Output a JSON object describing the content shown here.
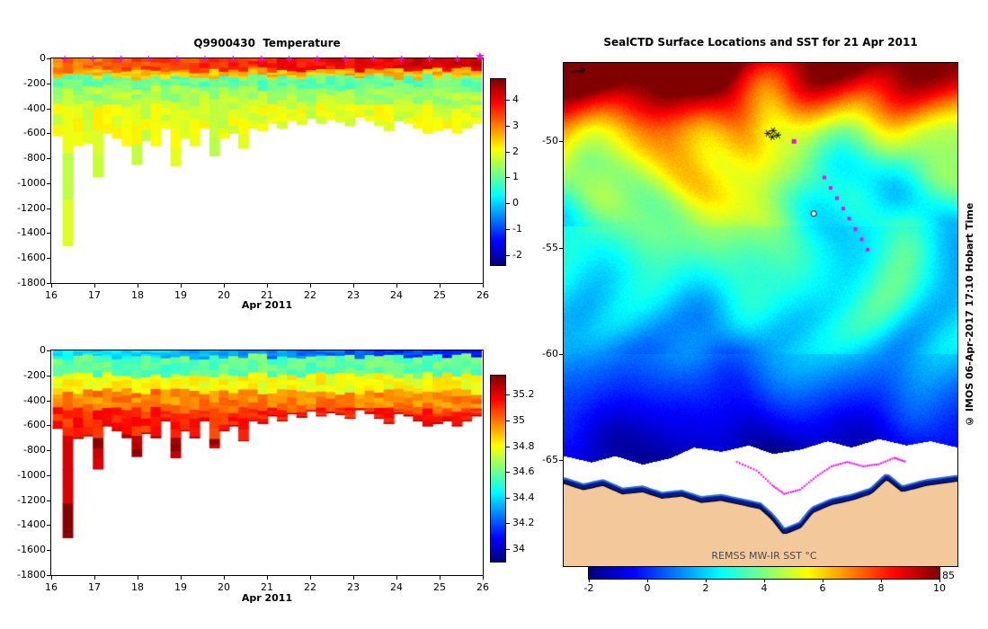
{
  "figure_bg": "#ffffff",
  "chart_data": [
    {
      "type": "heatmap",
      "title": "Q9900430  Temperature",
      "xlabel": "Apr 2011",
      "xlim": [
        16,
        26
      ],
      "ylim": [
        -1800,
        0
      ],
      "x_ticks": [
        16,
        17,
        18,
        19,
        20,
        21,
        22,
        23,
        24,
        25,
        26
      ],
      "y_ticks": [
        0,
        -200,
        -400,
        -600,
        -800,
        -1000,
        -1200,
        -1400,
        -1600,
        -1800
      ],
      "colormap": "jet",
      "color_range": [
        -2.4,
        4.8
      ],
      "colorbar_ticks": [
        4,
        3,
        2,
        1,
        0,
        -1,
        -2
      ],
      "marker_color": "#ff00ff",
      "marker_days": [
        16.3,
        16.95,
        17.6,
        18.25,
        18.9,
        19.55,
        20.2,
        20.85,
        21.5,
        22.15,
        22.8,
        23.45,
        24.1,
        24.75,
        25.4
      ],
      "end_marker_day": 26,
      "layers": [
        {
          "top": 0,
          "bottom": -95,
          "value": 3.1,
          "value_end": 4.3
        },
        {
          "top": -95,
          "bottom": -150,
          "value": 2.6
        },
        {
          "top": -150,
          "bottom": -240,
          "value": 1.0
        },
        {
          "top": -240,
          "bottom": -390,
          "value": 1.5
        },
        {
          "top": -390,
          "bottom": "max",
          "value": 1.9
        }
      ],
      "columns": [
        [
          16.15,
          -620
        ],
        [
          16.38,
          -1500
        ],
        [
          16.62,
          -700
        ],
        [
          16.85,
          -680
        ],
        [
          17.08,
          -950
        ],
        [
          17.3,
          -600
        ],
        [
          17.52,
          -640
        ],
        [
          17.75,
          -700
        ],
        [
          17.98,
          -850
        ],
        [
          18.2,
          -660
        ],
        [
          18.42,
          -700
        ],
        [
          18.65,
          -560
        ],
        [
          18.88,
          -860
        ],
        [
          19.1,
          -640
        ],
        [
          19.32,
          -700
        ],
        [
          19.55,
          -560
        ],
        [
          19.78,
          -780
        ],
        [
          20.0,
          -640
        ],
        [
          20.22,
          -600
        ],
        [
          20.45,
          -720
        ],
        [
          20.68,
          -560
        ],
        [
          20.9,
          -580
        ],
        [
          21.12,
          -520
        ],
        [
          21.35,
          -560
        ],
        [
          21.58,
          -500
        ],
        [
          21.8,
          -530
        ],
        [
          22.02,
          -480
        ],
        [
          22.25,
          -520
        ],
        [
          22.48,
          -490
        ],
        [
          22.7,
          -510
        ],
        [
          22.92,
          -540
        ],
        [
          23.15,
          -470
        ],
        [
          23.38,
          -500
        ],
        [
          23.6,
          -540
        ],
        [
          23.82,
          -580
        ],
        [
          24.05,
          -500
        ],
        [
          24.28,
          -520
        ],
        [
          24.5,
          -560
        ],
        [
          24.72,
          -600
        ],
        [
          24.95,
          -580
        ],
        [
          25.18,
          -560
        ],
        [
          25.4,
          -600
        ],
        [
          25.62,
          -560
        ],
        [
          25.85,
          -520
        ]
      ]
    },
    {
      "type": "heatmap",
      "title": "",
      "xlabel": "Apr 2011",
      "xlim": [
        16,
        26
      ],
      "ylim": [
        -1800,
        0
      ],
      "x_ticks": [
        16,
        17,
        18,
        19,
        20,
        21,
        22,
        23,
        24,
        25,
        26
      ],
      "y_ticks": [
        0,
        -200,
        -400,
        -600,
        -800,
        -1000,
        -1200,
        -1400,
        -1600,
        -1800
      ],
      "colormap": "jet",
      "color_range": [
        33.9,
        35.35
      ],
      "colorbar_ticks": [
        35.2,
        35,
        34.8,
        34.6,
        34.4,
        34.2,
        34
      ],
      "columns_same_as": 0,
      "layers": [
        {
          "top": 0,
          "bottom": -50,
          "value": 34.45,
          "value_end": 34.1
        },
        {
          "top": -50,
          "bottom": -200,
          "value": 34.58
        },
        {
          "top": -200,
          "bottom": -330,
          "value": 34.8
        },
        {
          "top": -330,
          "bottom": -480,
          "value": 34.98
        },
        {
          "top": -480,
          "bottom": -700,
          "value": 35.12
        },
        {
          "top": -700,
          "bottom": "max",
          "value": 35.28
        }
      ]
    },
    {
      "type": "heatmap",
      "title": "SealCTD Surface Locations and SST for 21 Apr 2011",
      "colorbar_label": "REMSS MW-IR SST °C",
      "corner_label": "85",
      "credit": "© IMOS 06-Apr-2017 17:10 Hobart Time",
      "lat_ticks": [
        -50,
        -55,
        -60,
        -65
      ],
      "lat_top": -46.3,
      "lat_bottom": -70.0,
      "color_range": [
        -2,
        10
      ],
      "colorbar_ticks": [
        -2,
        0,
        2,
        4,
        6,
        8,
        10
      ],
      "colormap": "jet",
      "land_color": "#f3c99b",
      "ice_color": "#ffffff",
      "track_color": "#ff00ff",
      "fringe_colors": [
        "#00188f",
        "#2e6bd6"
      ],
      "sst_base": [
        [
          -70,
          -1.8
        ],
        [
          -66,
          -1.6
        ],
        [
          -64.8,
          -1.2
        ],
        [
          -63.5,
          -0.6
        ],
        [
          -62,
          0.2
        ],
        [
          -60.5,
          1.0
        ],
        [
          -59,
          1.8
        ],
        [
          -57,
          2.8
        ],
        [
          -55,
          3.6
        ],
        [
          -53,
          4.3
        ],
        [
          -51,
          5.2
        ],
        [
          -49.5,
          6.3
        ],
        [
          -48.5,
          7.5
        ],
        [
          -47.5,
          8.6
        ],
        [
          -46.3,
          9.8
        ]
      ],
      "cold_tongues": [
        {
          "fx": 0.66,
          "lat": -51.5,
          "amp": 2.3,
          "sx": 0.09,
          "sy": 2.0
        },
        {
          "fx": 0.53,
          "lat": -48.8,
          "amp": 2.0,
          "sx": 0.05,
          "sy": 1.6
        },
        {
          "fx": 0.75,
          "lat": -53.5,
          "amp": 1.5,
          "sx": 0.12,
          "sy": 2.5
        },
        {
          "fx": 0.98,
          "lat": -53.5,
          "amp": 1.6,
          "sx": 0.08,
          "sy": 2.2
        }
      ],
      "warm_spots": [
        {
          "fx": 0.9,
          "lat": -46.9,
          "amp": 1.6,
          "sx": 0.14,
          "sy": 1.2
        },
        {
          "fx": 0.1,
          "lat": -47.1,
          "amp": 1.2,
          "sx": 0.12,
          "sy": 1.2
        },
        {
          "fx": 0.3,
          "lat": -47.5,
          "amp": 0.8,
          "sx": 0.1,
          "sy": 1.0
        }
      ],
      "ice_edge": [
        [
          0,
          -64.8
        ],
        [
          0.07,
          -65.1
        ],
        [
          0.13,
          -64.8
        ],
        [
          0.2,
          -65.2
        ],
        [
          0.27,
          -64.9
        ],
        [
          0.33,
          -64.4
        ],
        [
          0.4,
          -64.6
        ],
        [
          0.47,
          -64.3
        ],
        [
          0.53,
          -64.7
        ],
        [
          0.6,
          -64.5
        ],
        [
          0.67,
          -64.1
        ],
        [
          0.73,
          -64.4
        ],
        [
          0.8,
          -64.0
        ],
        [
          0.87,
          -64.3
        ],
        [
          0.93,
          -64.1
        ],
        [
          1,
          -64.4
        ]
      ],
      "coast": [
        [
          0,
          -66.1
        ],
        [
          0.05,
          -66.4
        ],
        [
          0.1,
          -66.2
        ],
        [
          0.15,
          -66.6
        ],
        [
          0.2,
          -66.5
        ],
        [
          0.25,
          -66.8
        ],
        [
          0.3,
          -66.7
        ],
        [
          0.35,
          -67.0
        ],
        [
          0.4,
          -66.9
        ],
        [
          0.45,
          -67.1
        ],
        [
          0.5,
          -67.3
        ],
        [
          0.53,
          -67.8
        ],
        [
          0.56,
          -68.5
        ],
        [
          0.6,
          -68.2
        ],
        [
          0.63,
          -67.5
        ],
        [
          0.68,
          -67.1
        ],
        [
          0.73,
          -66.9
        ],
        [
          0.78,
          -66.6
        ],
        [
          0.82,
          -65.9
        ],
        [
          0.86,
          -66.5
        ],
        [
          0.92,
          -66.2
        ],
        [
          1,
          -66.0
        ]
      ],
      "colony_marker": {
        "fx": 0.532,
        "lat": -49.62
      },
      "start_marker": {
        "fx": 0.585,
        "lat": -50.0
      },
      "open_marker": {
        "fx": 0.635,
        "lat": -53.4
      },
      "track_points": [
        [
          0.662,
          -51.7
        ],
        [
          0.678,
          -52.19
        ],
        [
          0.694,
          -52.67
        ],
        [
          0.71,
          -53.16
        ],
        [
          0.725,
          -53.64
        ],
        [
          0.741,
          -54.13
        ],
        [
          0.757,
          -54.61
        ],
        [
          0.772,
          -55.1
        ]
      ],
      "ice_track": [
        [
          0.44,
          -65.1
        ],
        [
          0.49,
          -65.5
        ],
        [
          0.53,
          -66.2
        ],
        [
          0.56,
          -66.6
        ],
        [
          0.6,
          -66.4
        ],
        [
          0.64,
          -65.8
        ],
        [
          0.68,
          -65.3
        ],
        [
          0.72,
          -65.1
        ],
        [
          0.76,
          -65.3
        ],
        [
          0.8,
          -65.2
        ],
        [
          0.84,
          -64.9
        ],
        [
          0.87,
          -65.1
        ]
      ]
    }
  ]
}
